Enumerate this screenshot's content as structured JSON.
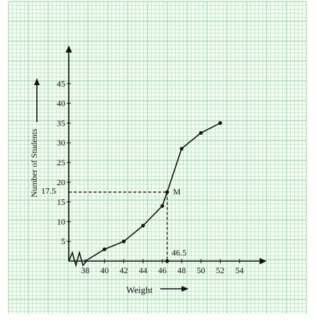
{
  "chart_data": {
    "type": "line",
    "xlabel": "Weight",
    "ylabel": "Number of Students",
    "x_ticks": [
      "38",
      "40",
      "42",
      "44",
      "46",
      "48",
      "50",
      "52",
      "54"
    ],
    "y_ticks": [
      "5",
      "10",
      "15",
      "20",
      "25",
      "30",
      "35",
      "40",
      "45"
    ],
    "xlim": [
      36.3,
      55.6
    ],
    "ylim": [
      0,
      48
    ],
    "grid": true,
    "series": [
      {
        "points": [
          {
            "x": 38,
            "y": 0
          },
          {
            "x": 40,
            "y": 3
          },
          {
            "x": 42,
            "y": 5
          },
          {
            "x": 44,
            "y": 9
          },
          {
            "x": 46,
            "y": 14
          },
          {
            "x": 46.5,
            "y": 17.5
          },
          {
            "x": 48,
            "y": 28.5
          },
          {
            "x": 50,
            "y": 32.5
          },
          {
            "x": 52,
            "y": 35
          }
        ]
      }
    ],
    "marker_points": [
      {
        "x": 40,
        "y": 3
      },
      {
        "x": 42,
        "y": 5
      },
      {
        "x": 44,
        "y": 9
      },
      {
        "x": 46,
        "y": 14
      },
      {
        "x": 46.5,
        "y": 17.5
      },
      {
        "x": 48,
        "y": 28.5
      },
      {
        "x": 50,
        "y": 32.5
      },
      {
        "x": 52,
        "y": 35
      }
    ],
    "median": {
      "x": 46.5,
      "y": 17.5,
      "point_label": "M",
      "x_label": "46.5",
      "y_label": "17.5"
    },
    "colors": {
      "grid": "#8fcf9a",
      "background": "#f3fbf3",
      "ink": "#111111"
    }
  }
}
